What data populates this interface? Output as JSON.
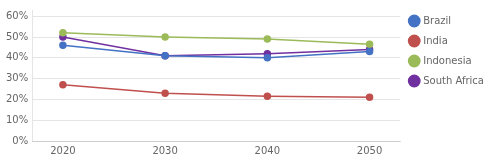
{
  "chart_data": {
    "type": "line",
    "x": [
      2020,
      2030,
      2040,
      2050
    ],
    "series": [
      {
        "name": "Brazil",
        "color": "#4472C4",
        "values": [
          0.46,
          0.41,
          0.4,
          0.43
        ]
      },
      {
        "name": "India",
        "color": "#C0504D",
        "values": [
          0.27,
          0.23,
          0.215,
          0.21
        ]
      },
      {
        "name": "Indonesia",
        "color": "#9BBB59",
        "values": [
          0.52,
          0.5,
          0.49,
          0.465
        ]
      },
      {
        "name": "South Africa",
        "color": "#7030A0",
        "values": [
          0.5,
          0.41,
          0.42,
          0.44
        ]
      }
    ],
    "xlim": [
      2017,
      2053
    ],
    "xticks": [
      2020,
      2030,
      2040,
      2050
    ],
    "ylim": [
      0.0,
      0.63
    ],
    "yticks": [
      {
        "value": 0.0,
        "label": "0%"
      },
      {
        "value": 0.1,
        "label": "10%"
      },
      {
        "value": 0.2,
        "label": "20%"
      },
      {
        "value": 0.3,
        "label": "30%"
      },
      {
        "value": 0.4,
        "label": "40%"
      },
      {
        "value": 0.5,
        "label": "50%"
      },
      {
        "value": 0.6,
        "label": "60%"
      }
    ],
    "grid": "y",
    "legend": "right",
    "marker": "circle"
  }
}
